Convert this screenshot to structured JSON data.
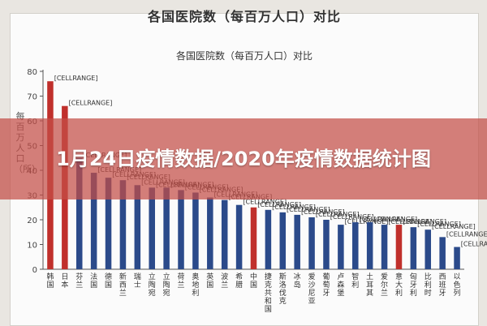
{
  "page": {
    "top_title": "各国医院数（每百万人口）对比",
    "banner_title": "1月24日疫情数据/2020年疫情数据统计图"
  },
  "chart_data": {
    "type": "bar",
    "title": "各国医院数（每百万人口）对比",
    "xlabel": "",
    "ylabel": "每百万人口（所）",
    "ylim": [
      0,
      80
    ],
    "yticks": [
      0,
      10,
      20,
      30,
      40,
      50,
      60,
      70,
      80
    ],
    "grid": false,
    "categories": [
      "韩国",
      "日本",
      "芬兰",
      "法国",
      "德国",
      "新西兰",
      "瑞士",
      "立陶宛",
      "立陶宛",
      "荷兰",
      "奥地利",
      "英国",
      "波兰",
      "希腊",
      "中国",
      "捷克共和国",
      "斯洛伐克",
      "冰岛",
      "爱沙尼亚",
      "葡萄牙",
      "卢森堡",
      "智利",
      "土耳其",
      "爱尔兰",
      "意大利",
      "匈牙利",
      "比利时",
      "西班牙",
      "以色列"
    ],
    "values": [
      76,
      66,
      45,
      39,
      37,
      36,
      34,
      33,
      33,
      32,
      31,
      29,
      28,
      26,
      25,
      24,
      23,
      22,
      21,
      20,
      18,
      19,
      19,
      18,
      18,
      17,
      16,
      13,
      9
    ],
    "data_label": "[CELLRANGE]",
    "colors": {
      "default": "#2b4a8a",
      "highlight": "#c0302c",
      "axis": "#555555"
    },
    "highlight_categories": [
      "韩国",
      "日本",
      "中国",
      "意大利"
    ]
  }
}
